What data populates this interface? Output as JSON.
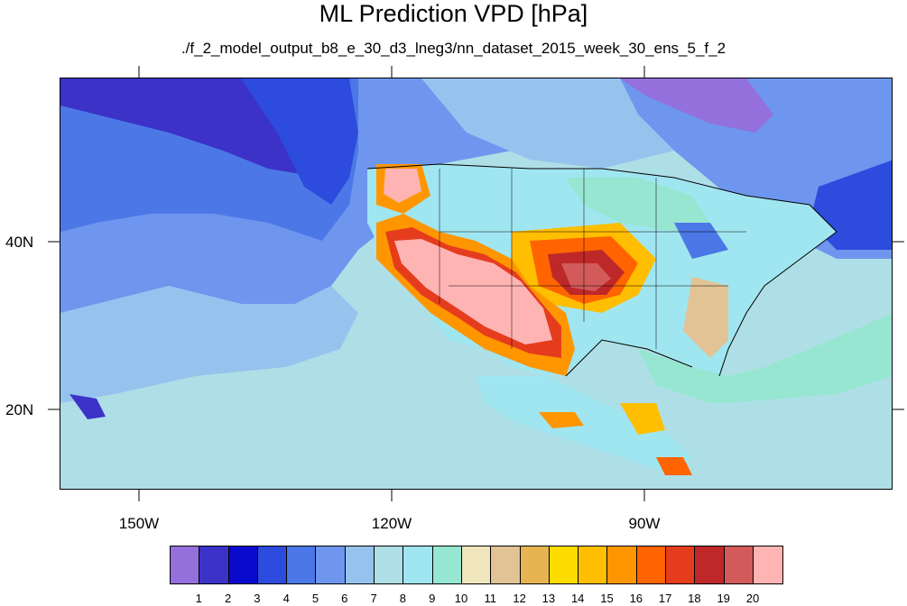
{
  "title": "ML Prediction VPD [hPa]",
  "subtitle": "./f_2_model_output_b8_e_30_d3_lneg3/nn_dataset_2015_week_30_ens_5_f_2",
  "axes": {
    "longitude_labels": [
      "150W",
      "120W",
      "90W"
    ],
    "latitude_labels": [
      "40N",
      "20N"
    ]
  },
  "colorbar": {
    "labels": [
      "1",
      "2",
      "3",
      "4",
      "5",
      "6",
      "7",
      "8",
      "9",
      "10",
      "11",
      "12",
      "13",
      "14",
      "15",
      "16",
      "17",
      "18",
      "19",
      "20"
    ],
    "colors": [
      "#9370db",
      "#3c32c8",
      "#0a0acd",
      "#2d4bdc",
      "#4b78e6",
      "#6e96ee",
      "#96c3ee",
      "#afdfe6",
      "#a0e6f0",
      "#96e6d2",
      "#f0e6be",
      "#e1c396",
      "#e6b450",
      "#ffdc00",
      "#ffbe00",
      "#ff9600",
      "#ff6400",
      "#e63c1e",
      "#be2828",
      "#d25a5a",
      "#ffb4b4"
    ]
  }
}
